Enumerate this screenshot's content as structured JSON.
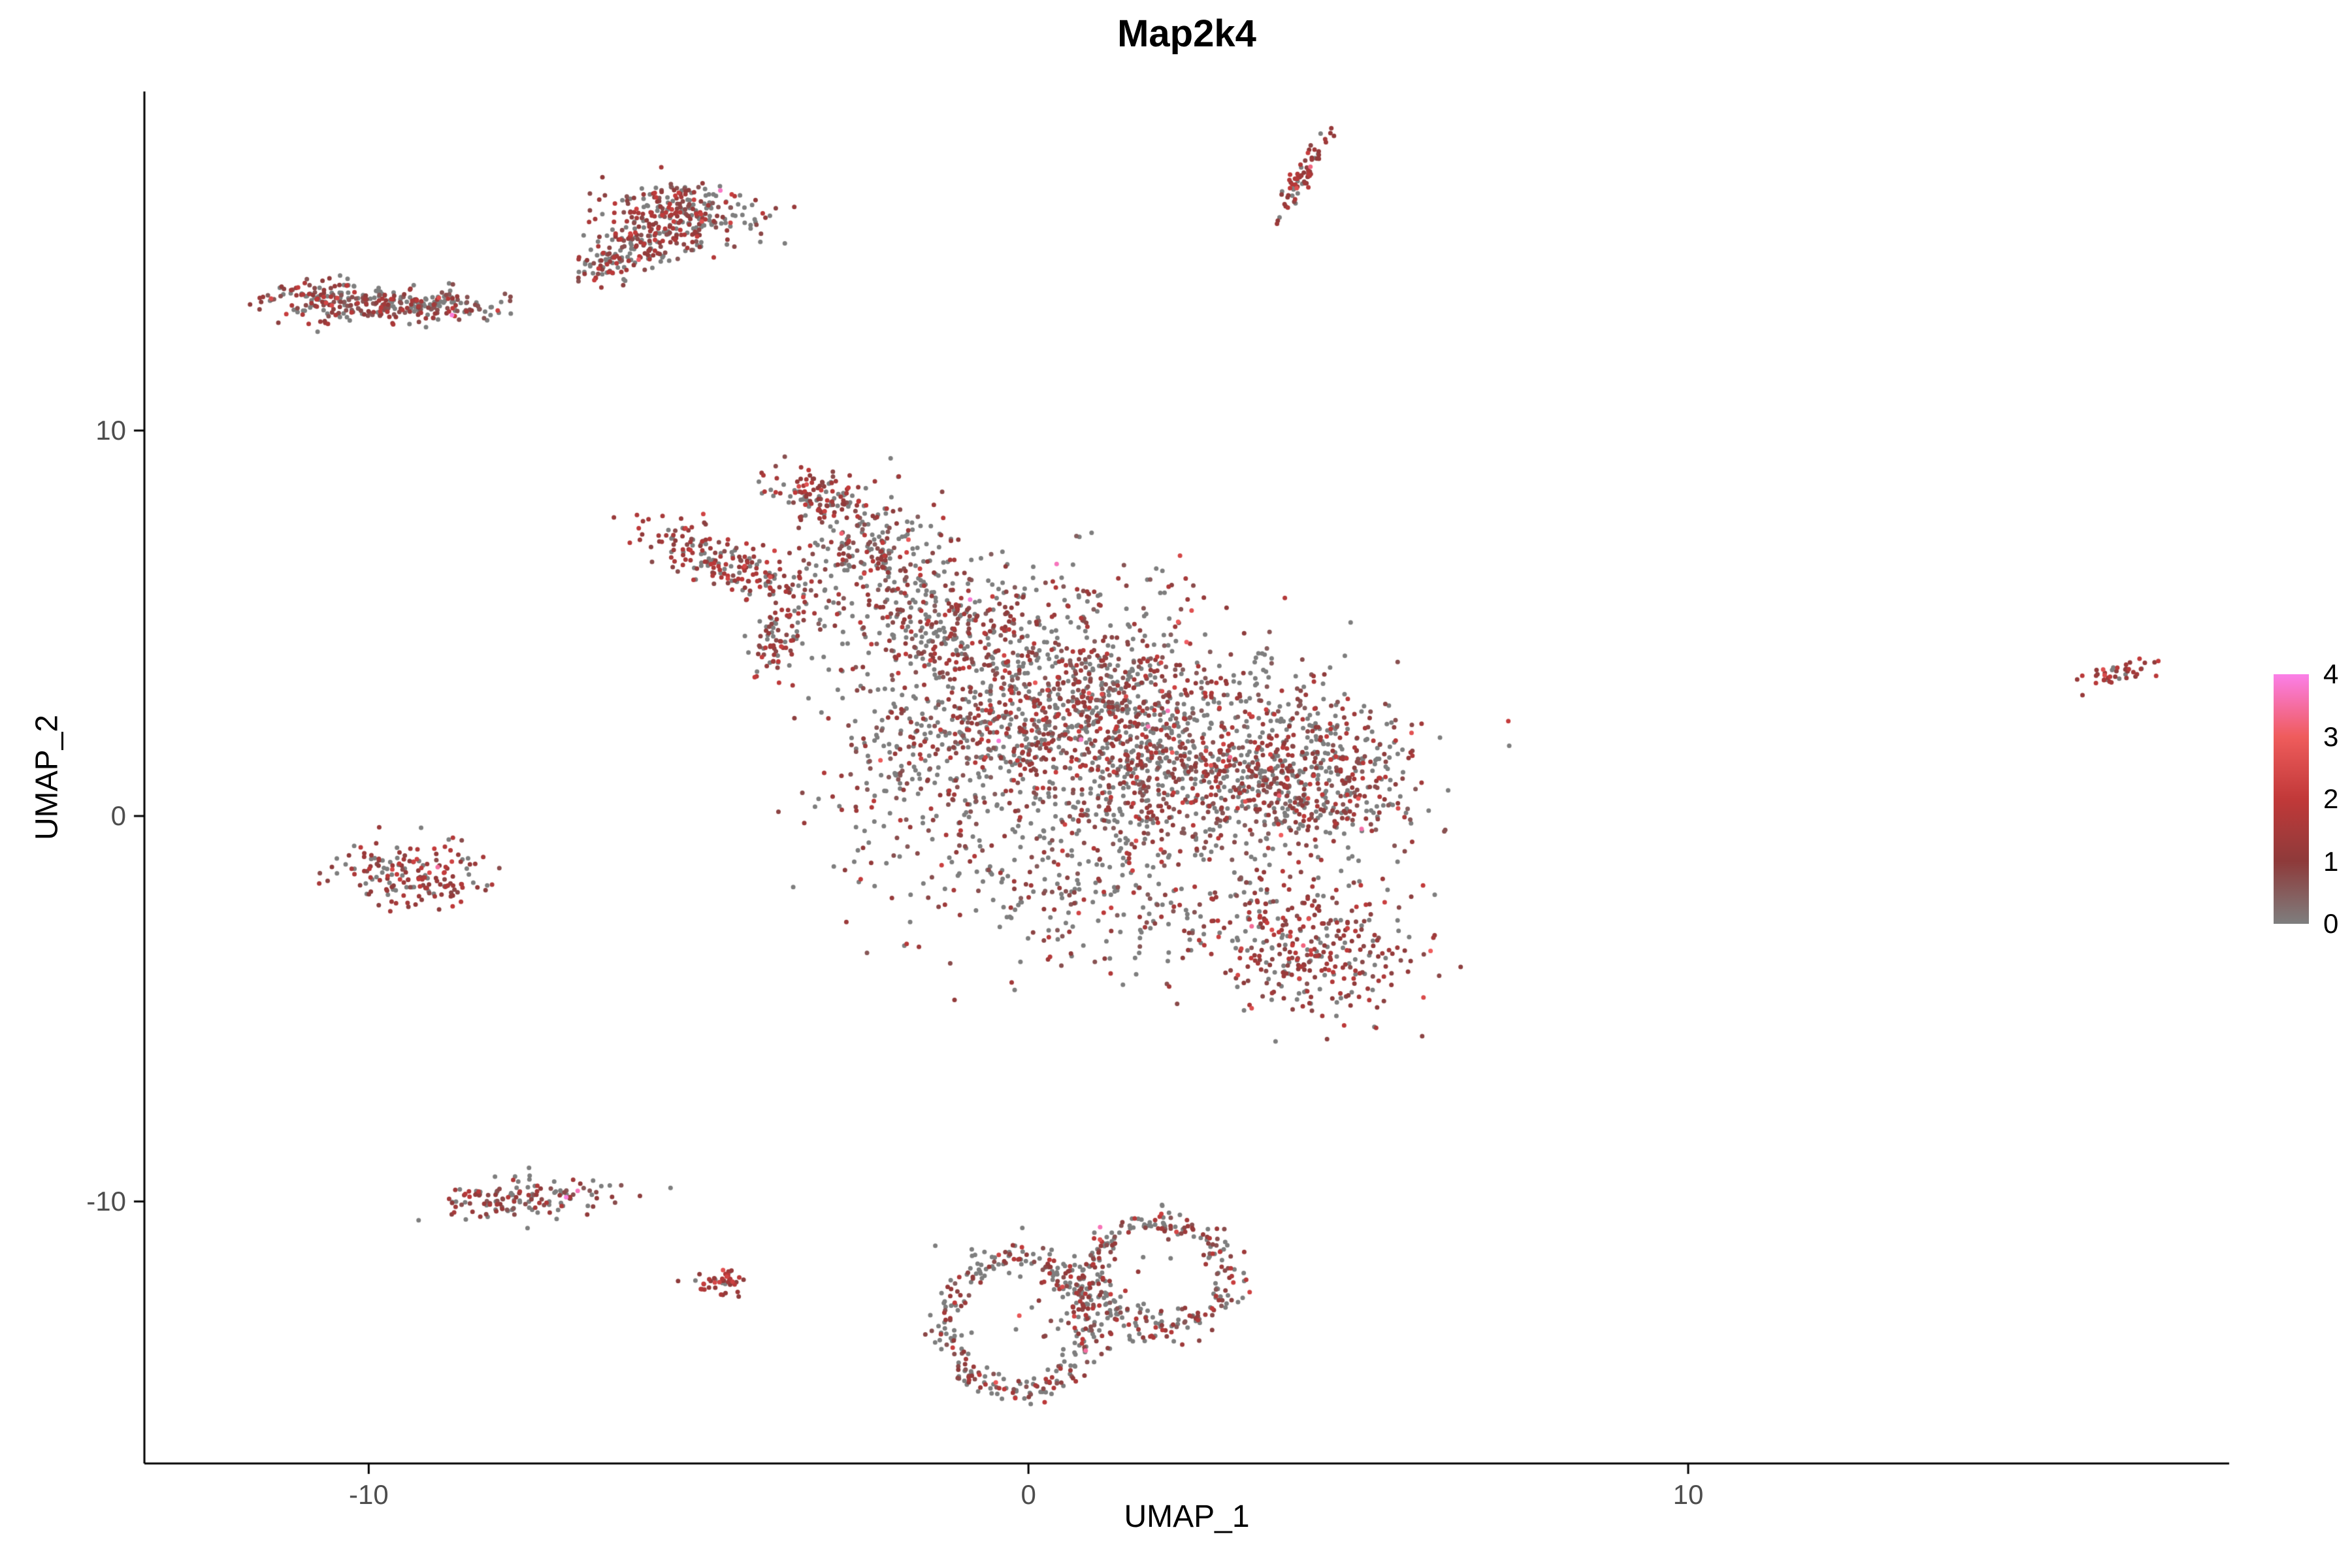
{
  "title": "Map2k4",
  "axes": {
    "x": {
      "label": "UMAP_1",
      "ticks": [
        "-10",
        "0",
        "10"
      ],
      "tick_values": [
        -10,
        0,
        10
      ]
    },
    "y": {
      "label": "UMAP_2",
      "ticks": [
        "-10",
        "0",
        "10"
      ],
      "tick_values": [
        -10,
        0,
        10
      ]
    }
  },
  "legend": {
    "tick_labels": [
      "4",
      "3",
      "2",
      "1",
      "0"
    ],
    "position": "right"
  },
  "colors": {
    "background": "#FFFFFF",
    "axis_line": "#000000",
    "tick_label": "#4D4D4D",
    "text": "#000000"
  },
  "chart_data": {
    "type": "scatter",
    "title": "Map2k4",
    "xlabel": "UMAP_1",
    "ylabel": "UMAP_2",
    "xlim": [
      -13.4,
      18.2
    ],
    "ylim": [
      -16.8,
      18.8
    ],
    "x_ticks": [
      -10,
      0,
      10
    ],
    "y_ticks": [
      -10,
      0,
      10
    ],
    "grid": false,
    "legend_position": "right",
    "point_radius_px": 3.5,
    "seed": 42,
    "color_scale": {
      "description": "expression level, gray (0) through dark red and red to magenta-pink (4)",
      "domain": [
        0,
        1,
        2,
        3,
        4
      ],
      "colors": [
        "#7E7E7E",
        "#8E3A3A",
        "#C13939",
        "#EF5C5C",
        "#FB7FE8"
      ]
    },
    "value_model": {
      "zero_default": 0.45,
      "base": 0.45,
      "mean_abs": 0.75,
      "high_tail_prob": 0.006
    },
    "clusters": [
      {
        "name": "top-streak",
        "type": "gauss",
        "cx": 4.15,
        "cy": 16.6,
        "sx": 0.55,
        "sy": 0.08,
        "rot": 71,
        "n": 70,
        "p0": 0.22,
        "vboost": 0.35
      },
      {
        "name": "topleft-main",
        "type": "gauss",
        "cx": -5.3,
        "cy": 15.55,
        "sx": 0.6,
        "sy": 0.42,
        "rot": -15,
        "n": 280,
        "p0": 0.4,
        "vboost": 0.1
      },
      {
        "name": "topleft-tail",
        "type": "gauss",
        "cx": -6.15,
        "cy": 14.6,
        "sx": 0.5,
        "sy": 0.28,
        "rot": 40,
        "n": 140,
        "p0": 0.4,
        "vboost": 0.1
      },
      {
        "name": "left-band-west",
        "type": "gauss",
        "cx": -10.35,
        "cy": 13.4,
        "sx": 0.62,
        "sy": 0.28,
        "rot": -4,
        "n": 210,
        "p0": 0.38,
        "vboost": 0.1
      },
      {
        "name": "left-band-east",
        "type": "gauss",
        "cx": -9.05,
        "cy": 13.25,
        "sx": 0.6,
        "sy": 0.2,
        "rot": -4,
        "n": 130,
        "p0": 0.45,
        "vboost": 0
      },
      {
        "name": "main-tip",
        "type": "gauss",
        "cx": -3.2,
        "cy": 8.3,
        "sx": 0.45,
        "sy": 0.3,
        "rot": -30,
        "n": 110,
        "p0": 0.3,
        "vboost": 0.2
      },
      {
        "name": "main-arm-west",
        "type": "gauss",
        "cx": -4.6,
        "cy": 6.6,
        "sx": 0.75,
        "sy": 0.26,
        "rot": -38,
        "n": 190,
        "p0": 0.28,
        "vboost": 0.25
      },
      {
        "name": "main-arm-small",
        "type": "gauss",
        "cx": -3.8,
        "cy": 4.6,
        "sx": 0.2,
        "sy": 0.5,
        "rot": -10,
        "n": 80,
        "p0": 0.3,
        "vboost": 0.25
      },
      {
        "name": "main-upper",
        "type": "gauss",
        "cx": -2.4,
        "cy": 7.0,
        "sx": 0.55,
        "sy": 0.75,
        "rot": 0,
        "n": 200,
        "p0": 0.45,
        "vboost": 0
      },
      {
        "name": "main-mid-upper",
        "type": "gauss",
        "cx": -1.3,
        "cy": 5.0,
        "sx": 0.85,
        "sy": 0.95,
        "rot": 0,
        "n": 330,
        "p0": 0.5,
        "vboost": 0
      },
      {
        "name": "main-core-west",
        "type": "gauss",
        "cx": 0.6,
        "cy": 2.8,
        "sx": 1.3,
        "sy": 1.5,
        "rot": -15,
        "n": 1050,
        "p0": 0.45,
        "vboost": 0
      },
      {
        "name": "main-core-east",
        "type": "gauss",
        "cx": 2.8,
        "cy": 1.2,
        "sx": 1.4,
        "sy": 1.25,
        "rot": -15,
        "n": 950,
        "p0": 0.45,
        "vboost": 0
      },
      {
        "name": "main-east-edge",
        "type": "gauss",
        "cx": 4.6,
        "cy": 1.0,
        "sx": 0.6,
        "sy": 0.9,
        "rot": 0,
        "n": 240,
        "p0": 0.35,
        "vboost": 0.15
      },
      {
        "name": "main-south-sparse",
        "type": "gauss",
        "cx": 0.9,
        "cy": -1.9,
        "sx": 1.7,
        "sy": 1.1,
        "rot": -10,
        "n": 280,
        "p0": 0.5,
        "vboost": 0
      },
      {
        "name": "main-west-sparse",
        "type": "gauss",
        "cx": -1.7,
        "cy": 1.2,
        "sx": 0.8,
        "sy": 1.1,
        "rot": 0,
        "n": 150,
        "p0": 0.55,
        "vboost": 0
      },
      {
        "name": "main-tail-south",
        "type": "gauss",
        "cx": 4.2,
        "cy": -3.6,
        "sx": 0.8,
        "sy": 0.9,
        "rot": 20,
        "n": 330,
        "p0": 0.28,
        "vboost": 0.2
      },
      {
        "name": "west-mid",
        "type": "gauss",
        "cx": -9.35,
        "cy": -1.5,
        "sx": 0.55,
        "sy": 0.4,
        "rot": -10,
        "n": 170,
        "p0": 0.28,
        "vboost": 0.25
      },
      {
        "name": "southwest",
        "type": "gauss",
        "cx": -7.7,
        "cy": -9.95,
        "sx": 0.75,
        "sy": 0.24,
        "rot": 6,
        "n": 140,
        "p0": 0.45,
        "vboost": 0.1
      },
      {
        "name": "tiny-south",
        "type": "gauss",
        "cx": -4.65,
        "cy": -12.1,
        "sx": 0.2,
        "sy": 0.17,
        "rot": 0,
        "n": 45,
        "p0": 0.18,
        "vboost": 0.4
      },
      {
        "name": "ring-west",
        "type": "ring",
        "cx": -0.2,
        "cy": -13.2,
        "rx": 1.05,
        "ry": 1.75,
        "rw": 0.12,
        "n": 300,
        "p0": 0.45,
        "vboost": 0.1
      },
      {
        "name": "ring-east",
        "type": "ring",
        "cx": 2.0,
        "cy": -11.9,
        "rx": 1.05,
        "ry": 1.35,
        "rw": 0.14,
        "n": 260,
        "p0": 0.45,
        "vboost": 0.1
      },
      {
        "name": "ring-mid-sparse",
        "type": "gauss",
        "cx": 0.9,
        "cy": -12.7,
        "sx": 0.8,
        "sy": 0.8,
        "rot": 0,
        "n": 60,
        "p0": 0.55,
        "vboost": 0
      },
      {
        "name": "far-east",
        "type": "gauss",
        "cx": 16.5,
        "cy": 3.7,
        "sx": 0.3,
        "sy": 0.11,
        "rot": 20,
        "n": 42,
        "p0": 0.12,
        "vboost": 0.45
      }
    ]
  }
}
